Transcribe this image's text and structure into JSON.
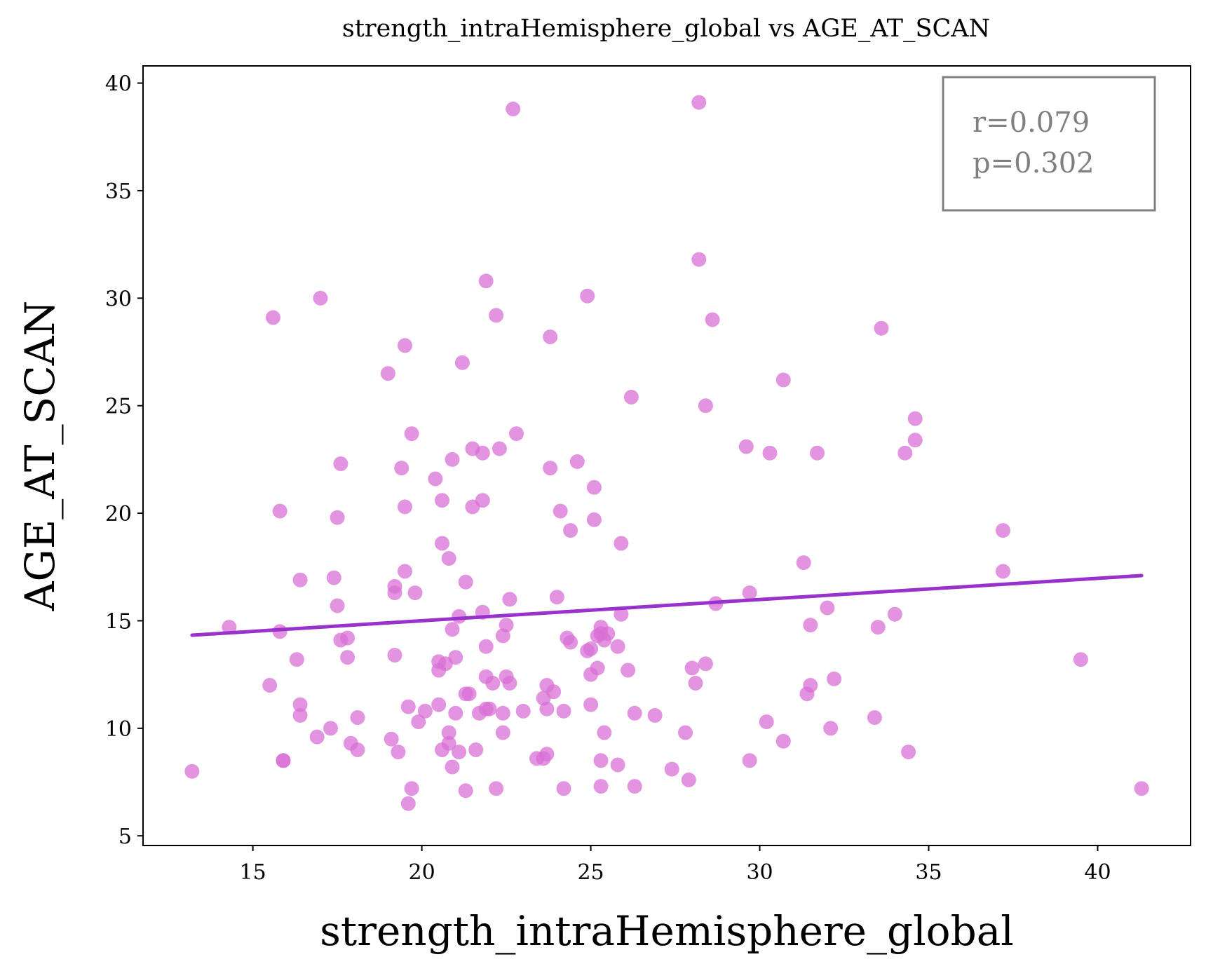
{
  "chart_data": {
    "type": "scatter",
    "title": "strength_intraHemisphere_global vs AGE_AT_SCAN",
    "xlabel": "strength_intraHemisphere_global",
    "ylabel": "AGE_AT_SCAN",
    "xlim": [
      11.75,
      42.75
    ],
    "ylim": [
      4.55,
      40.8
    ],
    "xticks": [
      15,
      20,
      25,
      30,
      35,
      40
    ],
    "yticks": [
      5,
      10,
      15,
      20,
      25,
      30,
      35,
      40
    ],
    "xtick_labels": [
      "15",
      "20",
      "25",
      "30",
      "35",
      "40"
    ],
    "ytick_labels": [
      "5",
      "10",
      "15",
      "20",
      "25",
      "30",
      "35",
      "40"
    ],
    "grid": false,
    "colors": {
      "points": "#da70d6",
      "fit_line": "#9932cc",
      "stats_text": "#808080",
      "stats_box_border": "#808080"
    },
    "stats_box": {
      "placement": "top-right",
      "lines": [
        "r=0.079",
        "p=0.302"
      ]
    },
    "regression_line": {
      "x": [
        13.2,
        41.3
      ],
      "y": [
        14.33,
        17.1
      ]
    },
    "points": [
      [
        13.2,
        8.0
      ],
      [
        14.3,
        14.7
      ],
      [
        15.5,
        12.0
      ],
      [
        15.6,
        29.1
      ],
      [
        15.8,
        20.1
      ],
      [
        15.8,
        14.5
      ],
      [
        15.9,
        8.5
      ],
      [
        15.9,
        8.5
      ],
      [
        16.3,
        13.2
      ],
      [
        16.4,
        16.9
      ],
      [
        16.4,
        11.1
      ],
      [
        16.4,
        10.6
      ],
      [
        16.9,
        9.6
      ],
      [
        17.0,
        30.0
      ],
      [
        17.3,
        10.0
      ],
      [
        17.4,
        17.0
      ],
      [
        17.5,
        15.7
      ],
      [
        17.5,
        19.8
      ],
      [
        17.6,
        22.3
      ],
      [
        17.6,
        14.1
      ],
      [
        17.8,
        14.2
      ],
      [
        17.8,
        13.3
      ],
      [
        17.9,
        9.3
      ],
      [
        18.1,
        10.5
      ],
      [
        18.1,
        9.0
      ],
      [
        19.0,
        26.5
      ],
      [
        19.1,
        9.5
      ],
      [
        19.2,
        13.4
      ],
      [
        19.2,
        16.6
      ],
      [
        19.2,
        16.3
      ],
      [
        19.3,
        8.9
      ],
      [
        19.4,
        22.1
      ],
      [
        19.5,
        27.8
      ],
      [
        19.5,
        20.3
      ],
      [
        19.5,
        17.3
      ],
      [
        19.6,
        11.0
      ],
      [
        19.6,
        6.5
      ],
      [
        19.7,
        7.2
      ],
      [
        19.7,
        23.7
      ],
      [
        19.8,
        16.3
      ],
      [
        19.9,
        10.3
      ],
      [
        20.1,
        10.8
      ],
      [
        20.4,
        21.6
      ],
      [
        20.5,
        13.1
      ],
      [
        20.5,
        12.7
      ],
      [
        20.5,
        11.1
      ],
      [
        20.6,
        9.0
      ],
      [
        20.6,
        18.6
      ],
      [
        20.6,
        20.6
      ],
      [
        20.7,
        13.0
      ],
      [
        20.8,
        9.8
      ],
      [
        20.8,
        17.9
      ],
      [
        20.8,
        9.3
      ],
      [
        20.9,
        8.2
      ],
      [
        20.9,
        14.6
      ],
      [
        20.9,
        22.5
      ],
      [
        21.0,
        10.7
      ],
      [
        21.0,
        13.3
      ],
      [
        21.1,
        8.9
      ],
      [
        21.1,
        15.2
      ],
      [
        21.2,
        27.0
      ],
      [
        21.3,
        16.8
      ],
      [
        21.3,
        11.6
      ],
      [
        21.3,
        7.1
      ],
      [
        21.4,
        11.6
      ],
      [
        21.5,
        20.3
      ],
      [
        21.5,
        23.0
      ],
      [
        21.6,
        9.0
      ],
      [
        21.7,
        10.7
      ],
      [
        21.8,
        15.4
      ],
      [
        21.8,
        22.8
      ],
      [
        21.8,
        20.6
      ],
      [
        21.9,
        30.8
      ],
      [
        21.9,
        12.4
      ],
      [
        21.9,
        10.9
      ],
      [
        21.9,
        13.8
      ],
      [
        22.0,
        10.9
      ],
      [
        22.1,
        12.1
      ],
      [
        22.2,
        29.2
      ],
      [
        22.2,
        7.2
      ],
      [
        22.3,
        23.0
      ],
      [
        22.4,
        14.3
      ],
      [
        22.4,
        9.8
      ],
      [
        22.4,
        10.7
      ],
      [
        22.5,
        14.8
      ],
      [
        22.5,
        12.4
      ],
      [
        22.6,
        16.0
      ],
      [
        22.6,
        12.1
      ],
      [
        22.7,
        38.8
      ],
      [
        22.8,
        23.7
      ],
      [
        23.0,
        10.8
      ],
      [
        23.4,
        8.6
      ],
      [
        23.6,
        11.4
      ],
      [
        23.6,
        8.6
      ],
      [
        23.7,
        8.8
      ],
      [
        23.7,
        12.0
      ],
      [
        23.7,
        10.9
      ],
      [
        23.8,
        22.1
      ],
      [
        23.8,
        28.2
      ],
      [
        23.9,
        11.7
      ],
      [
        24.0,
        16.1
      ],
      [
        24.1,
        20.1
      ],
      [
        24.2,
        10.8
      ],
      [
        24.2,
        7.2
      ],
      [
        24.3,
        14.2
      ],
      [
        24.4,
        19.2
      ],
      [
        24.4,
        14.0
      ],
      [
        24.6,
        22.4
      ],
      [
        24.9,
        13.6
      ],
      [
        24.9,
        30.1
      ],
      [
        25.0,
        13.7
      ],
      [
        25.0,
        12.5
      ],
      [
        25.0,
        11.1
      ],
      [
        25.1,
        21.2
      ],
      [
        25.1,
        19.7
      ],
      [
        25.2,
        14.3
      ],
      [
        25.2,
        12.8
      ],
      [
        25.3,
        14.7
      ],
      [
        25.3,
        8.5
      ],
      [
        25.3,
        7.3
      ],
      [
        25.3,
        14.4
      ],
      [
        25.4,
        14.1
      ],
      [
        25.4,
        9.8
      ],
      [
        25.5,
        14.4
      ],
      [
        25.8,
        8.3
      ],
      [
        25.8,
        13.8
      ],
      [
        25.9,
        18.6
      ],
      [
        25.9,
        15.3
      ],
      [
        26.1,
        12.7
      ],
      [
        26.3,
        10.7
      ],
      [
        26.3,
        7.3
      ],
      [
        26.2,
        25.4
      ],
      [
        26.9,
        10.6
      ],
      [
        27.4,
        8.1
      ],
      [
        27.8,
        9.8
      ],
      [
        27.9,
        7.6
      ],
      [
        28.0,
        12.8
      ],
      [
        28.1,
        12.1
      ],
      [
        28.2,
        39.1
      ],
      [
        28.2,
        31.8
      ],
      [
        28.4,
        13.0
      ],
      [
        28.4,
        25.0
      ],
      [
        28.6,
        29.0
      ],
      [
        28.7,
        15.8
      ],
      [
        29.6,
        23.1
      ],
      [
        29.7,
        16.3
      ],
      [
        29.7,
        8.5
      ],
      [
        30.2,
        10.3
      ],
      [
        30.3,
        22.8
      ],
      [
        30.7,
        26.2
      ],
      [
        30.7,
        9.4
      ],
      [
        31.3,
        17.7
      ],
      [
        31.4,
        11.6
      ],
      [
        31.5,
        14.8
      ],
      [
        31.5,
        12.0
      ],
      [
        31.7,
        22.8
      ],
      [
        32.0,
        15.6
      ],
      [
        32.1,
        10.0
      ],
      [
        32.2,
        12.3
      ],
      [
        33.4,
        10.5
      ],
      [
        33.5,
        14.7
      ],
      [
        33.6,
        28.6
      ],
      [
        34.0,
        15.3
      ],
      [
        34.3,
        22.8
      ],
      [
        34.4,
        8.9
      ],
      [
        34.6,
        24.4
      ],
      [
        34.6,
        23.4
      ],
      [
        37.2,
        19.2
      ],
      [
        37.2,
        17.3
      ],
      [
        39.5,
        13.2
      ],
      [
        41.3,
        7.2
      ]
    ]
  }
}
